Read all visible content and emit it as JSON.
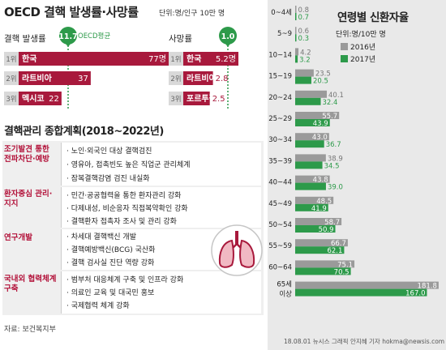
{
  "header": {
    "title": "OECD 결핵 발생률·사망률",
    "unit": "단위:명/인구 10만 명",
    "incidence_label": "결핵 발생률",
    "mortality_label": "사망률",
    "oecd_label": "OECD평균"
  },
  "plan": {
    "title": "결핵관리 종합계획(2018~2022년)",
    "sections": [
      {
        "label": "조기발견 통한 전파차단·예방",
        "items": [
          "노인·외국인 대상 결핵검진",
          "영유아, 접촉빈도 높은 직업군 관리체계",
          "잠복결핵감염 검진 내실화"
        ]
      },
      {
        "label": "환자중심 관리·지지",
        "items": [
          "민간·공공협력을 통한 환자관리 강화",
          "다제내성, 비순응자 직접복약확인 강화",
          "결핵환자 접촉자 조사 및 관리 강화"
        ]
      },
      {
        "label": "연구개발",
        "items": [
          "차세대 결핵백신 개발",
          "결핵예방백신(BCG) 국산화",
          "결핵 검사실 진단 역량 강화"
        ]
      },
      {
        "label": "국내외 협력체계 구축",
        "items": [
          "범부처 대응체계 구축 및 인프라 강화",
          "의료인 교육 및 대국민 홍보",
          "국제협력 체계 강화"
        ]
      }
    ]
  },
  "source": "자료: 보건복지부",
  "right": {
    "title": "연령별 신환자율",
    "unit": "단위:명/10만 명",
    "credit": "18.08.01 뉴시스 그래픽 안지혜 기자 hokma@newsis.com"
  },
  "colors": {
    "crimson": "#a8193c",
    "green": "#2d9a4a",
    "gray": "#9a9a9a"
  },
  "chart_data": [
    {
      "type": "bar",
      "orientation": "horizontal",
      "title": "결핵 발생률",
      "categories": [
        "1위 한국",
        "2위 라트비아",
        "3위 멕시코"
      ],
      "ranks": [
        "1위",
        "2위",
        "3위"
      ],
      "countries": [
        "한국",
        "라트비아",
        "멕시코"
      ],
      "values": [
        77,
        37,
        22
      ],
      "value_labels": [
        "77명",
        "37",
        "22"
      ],
      "reference_line": {
        "label": "OECD평균",
        "value": 11.7
      }
    },
    {
      "type": "bar",
      "orientation": "horizontal",
      "title": "사망률",
      "categories": [
        "1위 한국",
        "2위 라트비아",
        "3위 포르투갈"
      ],
      "ranks": [
        "1위",
        "2위",
        "3위"
      ],
      "countries": [
        "한국",
        "라트비아",
        "포르투갈"
      ],
      "values": [
        5.2,
        2.8,
        2.5
      ],
      "value_labels": [
        "5.2명",
        "2.8",
        "2.5"
      ],
      "reference_line": {
        "value": 1.0
      }
    },
    {
      "type": "bar",
      "orientation": "horizontal",
      "title": "연령별 신환자율",
      "categories": [
        "0~4세",
        "5~9",
        "10~14",
        "15~19",
        "20~24",
        "25~29",
        "30~34",
        "35~39",
        "40~44",
        "45~49",
        "50~54",
        "55~59",
        "60~64",
        "65세 이상"
      ],
      "series": [
        {
          "name": "2016년",
          "color": "#9a9a9a",
          "values": [
            0.8,
            0.6,
            4.2,
            23.5,
            40.1,
            55.7,
            43.0,
            38.9,
            43.8,
            48.5,
            58.7,
            66.7,
            75.1,
            181.8
          ]
        },
        {
          "name": "2017년",
          "color": "#2d9a4a",
          "values": [
            0.7,
            0.3,
            3.2,
            20.5,
            32.4,
            43.9,
            36.7,
            34.5,
            39.0,
            41.9,
            50.9,
            62.1,
            70.5,
            167.0
          ]
        }
      ]
    }
  ]
}
